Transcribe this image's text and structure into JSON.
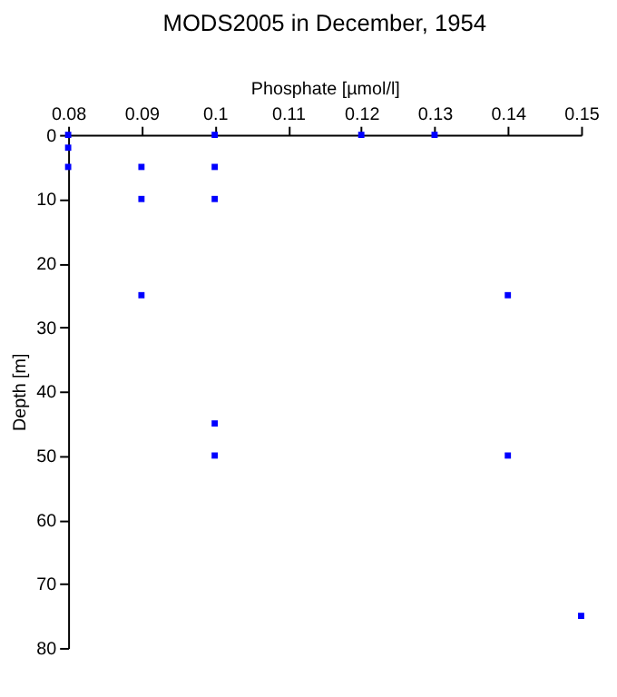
{
  "chart_data": {
    "type": "scatter",
    "title": "MODS2005 in December, 1954",
    "xlabel": "Phosphate [µmol/l]",
    "ylabel": "Depth [m]",
    "x": [
      0.08,
      0.08,
      0.08,
      0.09,
      0.1,
      0.09,
      0.1,
      0.1,
      0.12,
      0.13,
      0.09,
      0.14,
      0.1,
      0.1,
      0.14,
      0.15
    ],
    "series": [
      {
        "color": "#0000ff",
        "values": [
          0,
          2,
          5,
          5,
          5,
          10,
          10,
          0,
          0,
          0,
          25,
          25,
          45,
          50,
          50,
          75
        ]
      }
    ],
    "xlim": [
      0.08,
      0.15
    ],
    "xticks": [
      0.08,
      0.09,
      0.1,
      0.11,
      0.12,
      0.13,
      0.14,
      0.15
    ],
    "ylim": [
      80,
      0
    ],
    "yticks": [
      0,
      10,
      20,
      30,
      40,
      50,
      60,
      70,
      80
    ],
    "marker": "square",
    "grid": false,
    "legend": false
  }
}
